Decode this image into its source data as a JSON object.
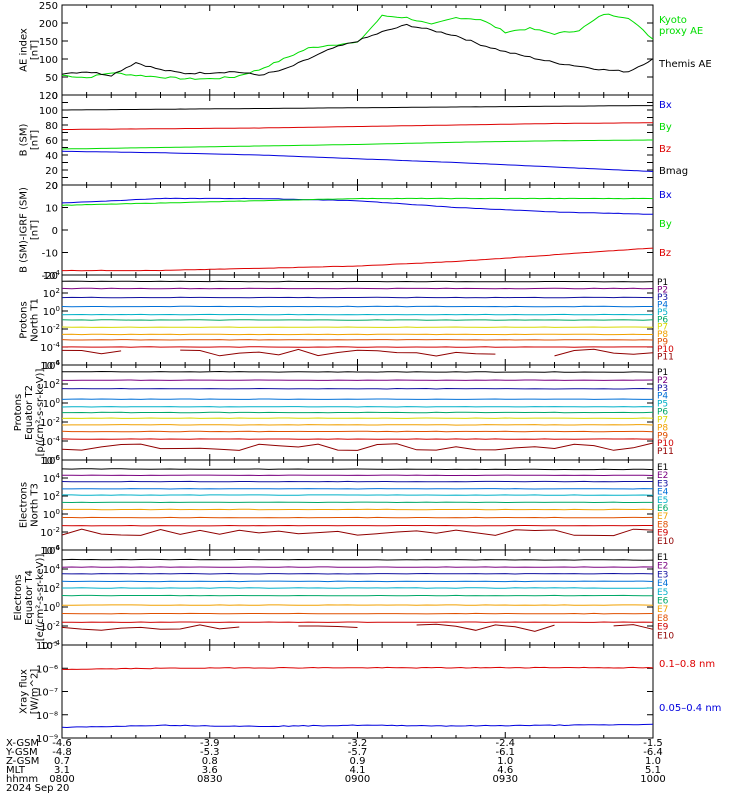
{
  "colors": {
    "black": "#000000",
    "green": "#00dd00",
    "red": "#dd0000",
    "blue": "#0000dd",
    "p1": "#000000",
    "p2": "#7a0080",
    "p3": "#1010a0",
    "p4": "#0070d8",
    "p5": "#00b0c8",
    "p6": "#00a868",
    "p7": "#d8d800",
    "p8": "#f0a000",
    "p9": "#e05000",
    "p10": "#d00000",
    "p11": "#900000"
  },
  "chart_data": [
    {
      "id": "ae",
      "type": "line",
      "ylabel": [
        "AE index",
        "[nT]"
      ],
      "ylim": [
        0,
        250
      ],
      "yticks": [
        0,
        50,
        100,
        150,
        200,
        250
      ],
      "x": [
        0,
        5,
        10,
        15,
        20,
        25,
        30,
        35,
        40,
        45,
        50,
        55,
        60,
        65,
        70,
        75,
        80,
        85,
        90,
        95,
        100,
        105,
        110,
        115,
        120
      ],
      "series": [
        {
          "name": "Kyoto proxy AE",
          "label": [
            "Kyoto",
            "proxy AE"
          ],
          "color": "green",
          "values": [
            55,
            48,
            62,
            55,
            50,
            45,
            45,
            50,
            70,
            100,
            130,
            140,
            145,
            220,
            215,
            195,
            215,
            210,
            175,
            185,
            170,
            180,
            225,
            215,
            155
          ]
        },
        {
          "name": "Themis AE",
          "label": [
            "Themis AE"
          ],
          "color": "black",
          "values": [
            60,
            65,
            55,
            90,
            70,
            60,
            62,
            65,
            55,
            70,
            100,
            130,
            150,
            175,
            195,
            180,
            165,
            140,
            120,
            105,
            90,
            80,
            70,
            65,
            100
          ]
        }
      ]
    },
    {
      "id": "bsm",
      "type": "line",
      "ylabel": [
        "B (SM)",
        "[nT]"
      ],
      "ylim": [
        0,
        120
      ],
      "yticks": [
        0,
        10,
        20,
        30,
        40,
        50,
        60,
        70,
        80,
        90,
        100,
        110,
        120
      ],
      "ylabelticks": [
        0,
        20,
        40,
        60,
        80,
        100,
        120
      ],
      "x": [
        0,
        20,
        40,
        60,
        80,
        100,
        120
      ],
      "series": [
        {
          "name": "Bx",
          "color": "blue",
          "values": [
            45,
            43,
            40,
            35,
            30,
            24,
            18
          ]
        },
        {
          "name": "By",
          "color": "green",
          "values": [
            48,
            50,
            52,
            54,
            57,
            59,
            60
          ]
        },
        {
          "name": "Bz",
          "color": "red",
          "values": [
            74,
            75,
            76,
            78,
            80,
            82,
            83
          ]
        },
        {
          "name": "Bmag",
          "color": "black",
          "values": [
            100,
            101,
            102,
            103,
            104,
            105,
            106
          ]
        }
      ]
    },
    {
      "id": "bigrf",
      "type": "line",
      "ylabel": [
        "B (SM)-IGRF (SM)",
        "[nT]"
      ],
      "ylim": [
        -20,
        20
      ],
      "yticks": [
        -20,
        -10,
        0,
        10,
        20
      ],
      "x": [
        0,
        20,
        40,
        60,
        80,
        100,
        120
      ],
      "series": [
        {
          "name": "Bx",
          "color": "blue",
          "values": [
            12,
            14,
            14,
            13,
            10,
            8,
            7
          ]
        },
        {
          "name": "By",
          "color": "green",
          "values": [
            11,
            12,
            13,
            14,
            14,
            14,
            14
          ]
        },
        {
          "name": "Bz",
          "color": "red",
          "values": [
            -18,
            -18,
            -17,
            -16,
            -14,
            -11,
            -8
          ]
        }
      ]
    },
    {
      "id": "pn",
      "type": "line",
      "log": true,
      "ylabel": [
        "Protons",
        "North T1"
      ],
      "ylim": [
        -6,
        4
      ],
      "yticks": [
        -6,
        -4,
        -2,
        0,
        2,
        4
      ],
      "channels": [
        "P1",
        "P2",
        "P3",
        "P4",
        "P5",
        "P6",
        "P7",
        "P8",
        "P9",
        "P10",
        "P11"
      ],
      "levels": [
        3.3,
        2.5,
        1.5,
        0.5,
        -0.4,
        -1.0,
        -1.8,
        -2.6,
        -3.2,
        -4.0,
        -4.6
      ],
      "noisy_channel": "P11",
      "noisy_gaps": [
        [
          14,
          22
        ],
        [
          92,
          98
        ]
      ]
    },
    {
      "id": "pe",
      "type": "line",
      "log": true,
      "ylabel": [
        "Protons",
        "Equator T2",
        "[p/(cm²-s-sr-keV)]"
      ],
      "ylim": [
        -6,
        4
      ],
      "yticks": [
        -6,
        -4,
        -2,
        0,
        2,
        4
      ],
      "channels": [
        "P1",
        "P2",
        "P3",
        "P4",
        "P5",
        "P6",
        "P7",
        "P8",
        "P9",
        "P10",
        "P11"
      ],
      "levels": [
        3.3,
        2.4,
        1.5,
        0.4,
        -0.4,
        -1.0,
        -1.6,
        -2.3,
        -3.0,
        -3.8,
        -4.6
      ],
      "noisy_channel": "P11",
      "noisy_gaps": []
    },
    {
      "id": "en",
      "type": "line",
      "log": true,
      "ylabel": [
        "Electrons",
        "North T3"
      ],
      "ylim": [
        -4,
        6
      ],
      "yticks": [
        -4,
        -2,
        0,
        2,
        4,
        6
      ],
      "channels": [
        "E1",
        "E2",
        "E3",
        "E4",
        "E5",
        "E6",
        "E7",
        "E8",
        "E9",
        "E10"
      ],
      "levels": [
        5.0,
        4.3,
        3.6,
        2.8,
        2.1,
        1.3,
        0.5,
        -0.4,
        -1.3,
        -2.0
      ],
      "noisy_channel": "E10",
      "noisy_gaps": []
    },
    {
      "id": "ee",
      "type": "line",
      "log": true,
      "ylabel": [
        "Electrons",
        "Equator T4",
        "[e/(cm²-s-sr-keV)]"
      ],
      "ylim": [
        -4,
        6
      ],
      "yticks": [
        -4,
        -2,
        0,
        2,
        4,
        6
      ],
      "channels": [
        "E1",
        "E2",
        "E3",
        "E4",
        "E5",
        "E6",
        "E7",
        "E8",
        "E9",
        "E10"
      ],
      "levels": [
        5.0,
        4.2,
        3.5,
        2.7,
        2.0,
        1.2,
        0.2,
        -0.7,
        -1.6,
        -2.2
      ],
      "noisy_channel": "E10",
      "noisy_gaps": [
        [
          38,
          44
        ],
        [
          62,
          70
        ],
        [
          102,
          108
        ]
      ]
    },
    {
      "id": "xray",
      "type": "line",
      "log": true,
      "ylabel": [
        "Xray flux",
        "[W/m^2]"
      ],
      "ylim": [
        -9,
        -5
      ],
      "yticks": [
        -9,
        -8,
        -7,
        -6,
        -5
      ],
      "yticklabels": [
        "10⁻⁹",
        "10⁻⁸",
        "10⁻⁷",
        "10⁻⁶",
        "10⁻⁵"
      ],
      "x": [
        0,
        20,
        40,
        60,
        80,
        100,
        120
      ],
      "series": [
        {
          "name": "0.1–0.8 nm",
          "label": [
            "0.1–0.8 nm"
          ],
          "color": "red",
          "values": [
            -6.05,
            -6.0,
            -5.98,
            -5.98,
            -5.98,
            -5.97,
            -5.98
          ]
        },
        {
          "name": "0.05–0.4 nm",
          "label": [
            "0.05–0.4 nm"
          ],
          "color": "blue",
          "values": [
            -8.55,
            -8.45,
            -8.5,
            -8.45,
            -8.48,
            -8.45,
            -8.42
          ]
        }
      ]
    }
  ],
  "xaxis": {
    "ticks": [
      0,
      30,
      60,
      90,
      120
    ],
    "rows": [
      {
        "label": "X-GSM",
        "values": [
          "-4.6",
          "-3.9",
          "-3.2",
          "-2.4",
          "-1.5"
        ]
      },
      {
        "label": "Y-GSM",
        "values": [
          "-4.8",
          "-5.3",
          "-5.7",
          "-6.1",
          "-6.4"
        ]
      },
      {
        "label": "Z-GSM",
        "values": [
          "0.7",
          "0.8",
          "0.9",
          "1.0",
          "1.0"
        ]
      },
      {
        "label": "MLT",
        "values": [
          "3.1",
          "3.6",
          "4.1",
          "4.6",
          "5.1"
        ]
      },
      {
        "label": "hhmm",
        "values": [
          "0800",
          "0830",
          "0900",
          "0930",
          "1000"
        ]
      }
    ],
    "date": "2024 Sep 20"
  }
}
